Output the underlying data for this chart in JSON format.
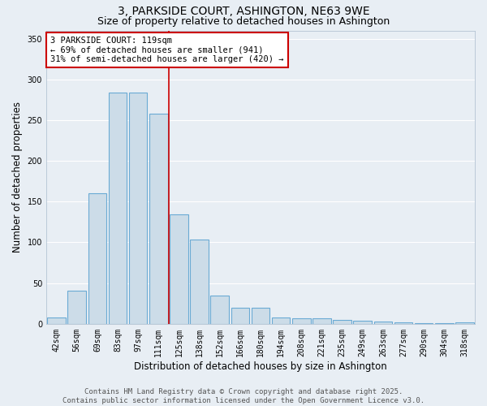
{
  "title": "3, PARKSIDE COURT, ASHINGTON, NE63 9WE",
  "subtitle": "Size of property relative to detached houses in Ashington",
  "xlabel": "Distribution of detached houses by size in Ashington",
  "ylabel": "Number of detached properties",
  "categories": [
    "42sqm",
    "56sqm",
    "69sqm",
    "83sqm",
    "97sqm",
    "111sqm",
    "125sqm",
    "138sqm",
    "152sqm",
    "166sqm",
    "180sqm",
    "194sqm",
    "208sqm",
    "221sqm",
    "235sqm",
    "249sqm",
    "263sqm",
    "277sqm",
    "290sqm",
    "304sqm",
    "318sqm"
  ],
  "values": [
    8,
    41,
    160,
    284,
    284,
    258,
    134,
    103,
    35,
    20,
    20,
    8,
    7,
    7,
    5,
    4,
    3,
    2,
    1,
    1,
    2
  ],
  "bar_color": "#ccdce8",
  "bar_edgecolor": "#6aaad4",
  "red_line_x": 5.5,
  "annotation_text": "3 PARKSIDE COURT: 119sqm\n← 69% of detached houses are smaller (941)\n31% of semi-detached houses are larger (420) →",
  "annotation_box_color": "white",
  "annotation_box_edgecolor": "#cc0000",
  "red_line_color": "#cc0000",
  "footer_line1": "Contains HM Land Registry data © Crown copyright and database right 2025.",
  "footer_line2": "Contains public sector information licensed under the Open Government Licence v3.0.",
  "ylim": [
    0,
    360
  ],
  "yticks": [
    0,
    50,
    100,
    150,
    200,
    250,
    300,
    350
  ],
  "background_color": "#e8eef4",
  "grid_color": "#ffffff",
  "title_fontsize": 10,
  "subtitle_fontsize": 9,
  "axis_label_fontsize": 8.5,
  "tick_fontsize": 7,
  "annotation_fontsize": 7.5,
  "footer_fontsize": 6.5
}
